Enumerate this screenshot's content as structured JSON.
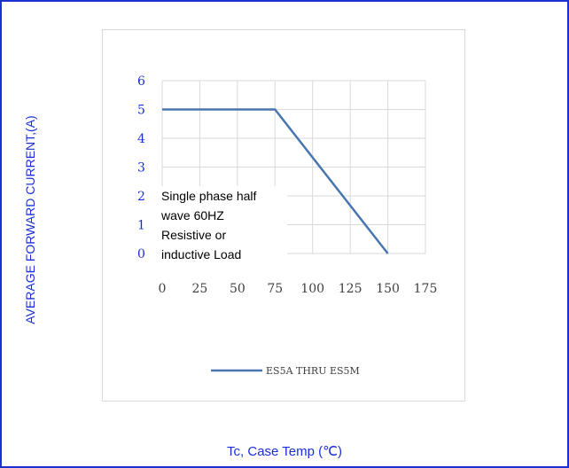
{
  "colors": {
    "frame": "#1a2fd6",
    "series": "#4a76b0",
    "grid": "#d9d9d9",
    "axis_label": "#1a2fd6"
  },
  "chart_data": {
    "type": "line",
    "title": "",
    "xlabel": "Tc, Case Temp (℃)",
    "ylabel": "AVERAGE FORWARD CURRENT,(A)",
    "xlim": [
      0,
      175
    ],
    "ylim": [
      0,
      6
    ],
    "x_ticks": [
      "0",
      "25",
      "50",
      "75",
      "100",
      "125",
      "150",
      "175"
    ],
    "y_ticks": [
      "0",
      "1",
      "2",
      "3",
      "4",
      "5",
      "6"
    ],
    "grid": true,
    "legend_position": "bottom",
    "series": [
      {
        "name": "ES5A THRU ES5M",
        "x": [
          0,
          75,
          150
        ],
        "y": [
          5,
          5,
          0
        ]
      }
    ],
    "annotation": [
      "Single phase half",
      "wave 60HZ",
      "Resistive or",
      "inductive Load"
    ]
  }
}
